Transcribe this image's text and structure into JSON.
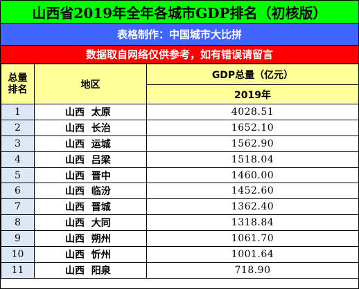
{
  "title": "山西省2019年全年各城市GDP排名（初核版）",
  "maker": "表格制作：中国城市大比拼",
  "note": "数据取自网络仅供参考，如有错误请留言",
  "headers": {
    "rank_line1": "总量",
    "rank_line2": "排名",
    "region": "地区",
    "gdp": "GDP总量（亿元）",
    "year": "2019年"
  },
  "rows": [
    {
      "rank": "1",
      "region": "山西  太原",
      "gdp": "4028.51"
    },
    {
      "rank": "2",
      "region": "山西  长治",
      "gdp": "1652.10"
    },
    {
      "rank": "3",
      "region": "山西  运城",
      "gdp": "1562.90"
    },
    {
      "rank": "4",
      "region": "山西  吕梁",
      "gdp": "1518.04"
    },
    {
      "rank": "5",
      "region": "山西  晋中",
      "gdp": "1460.00"
    },
    {
      "rank": "6",
      "region": "山西  临汾",
      "gdp": "1452.60"
    },
    {
      "rank": "7",
      "region": "山西  晋城",
      "gdp": "1362.40"
    },
    {
      "rank": "8",
      "region": "山西  大同",
      "gdp": "1318.84"
    },
    {
      "rank": "9",
      "region": "山西  朔州",
      "gdp": "1061.70"
    },
    {
      "rank": "10",
      "region": "山西  忻州",
      "gdp": "1001.64"
    },
    {
      "rank": "11",
      "region": "山西  阳泉",
      "gdp": "718.90"
    }
  ]
}
